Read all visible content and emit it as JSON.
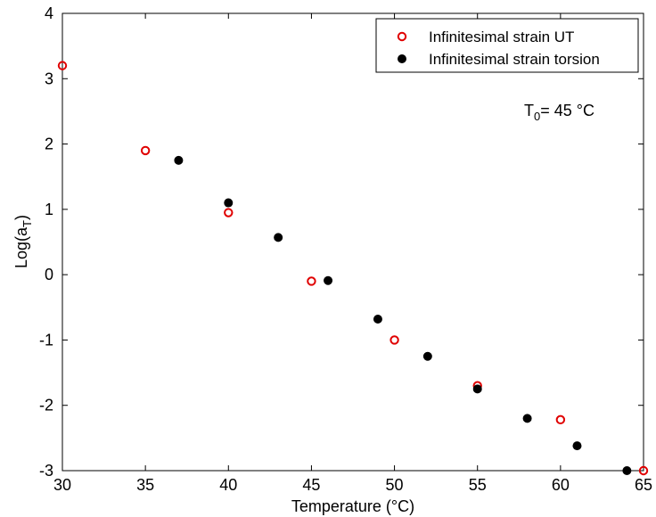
{
  "chart_data": {
    "type": "scatter",
    "title": "",
    "xlabel": "Temperature (°C)",
    "ylabel": {
      "main": "Log(a",
      "sub": "T",
      "close": ")"
    },
    "xlim": [
      30,
      65
    ],
    "ylim": [
      -3,
      4
    ],
    "xticks": [
      30,
      35,
      40,
      45,
      50,
      55,
      60,
      65
    ],
    "yticks": [
      -3,
      -2,
      -1,
      0,
      1,
      2,
      3,
      4
    ],
    "grid": false,
    "legend_position": "top-right",
    "annotation": {
      "main": "T",
      "sub": "0",
      "rest": "= 45 °C"
    },
    "series": [
      {
        "name": "Infinitesimal strain UT",
        "marker": "open-circle",
        "color": "#e00000",
        "x": [
          30,
          35,
          40,
          45,
          50,
          55,
          60,
          65
        ],
        "y": [
          3.2,
          1.9,
          0.95,
          -0.1,
          -1.0,
          -1.7,
          -2.22,
          -3.0
        ]
      },
      {
        "name": "Infinitesimal strain torsion",
        "marker": "filled-circle",
        "color": "#000000",
        "x": [
          37,
          40,
          43,
          46,
          49,
          52,
          55,
          58,
          61,
          64
        ],
        "y": [
          1.75,
          1.1,
          0.57,
          -0.09,
          -0.68,
          -1.25,
          -1.75,
          -2.2,
          -2.62,
          -3.0
        ]
      }
    ]
  }
}
